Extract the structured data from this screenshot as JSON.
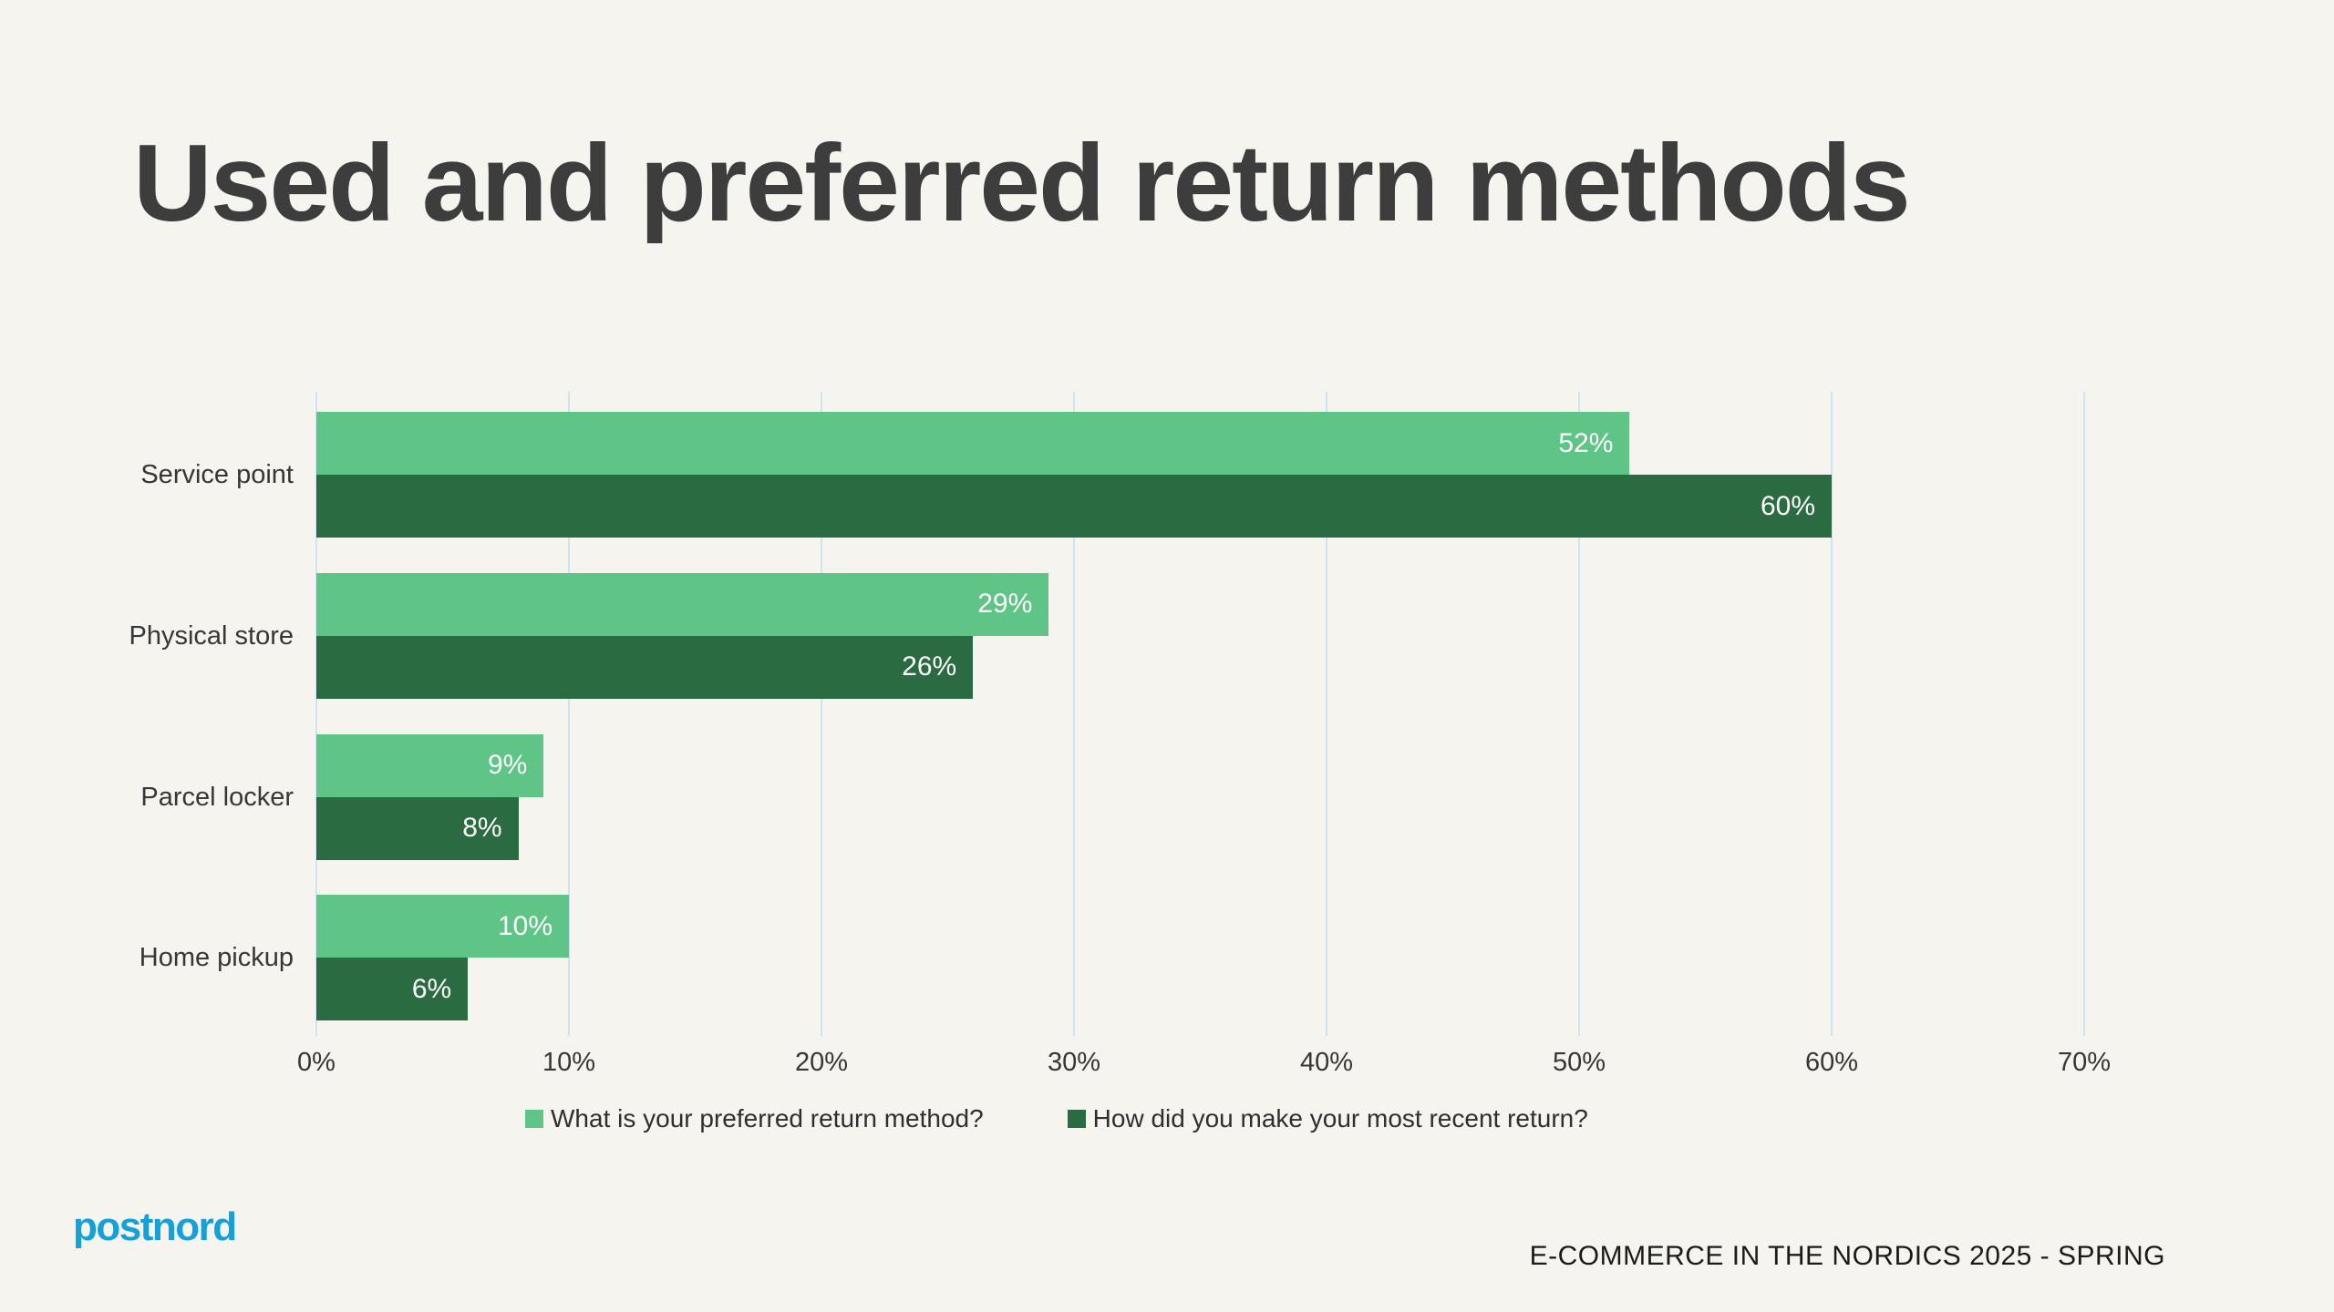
{
  "page": {
    "title": "Used and preferred return methods",
    "logo_text": "postnord",
    "source_caption": "E-COMMERCE IN THE NORDICS 2025 - SPRING"
  },
  "colors": {
    "background": "#F5F4EF",
    "title_text": "#3D3D3D",
    "gridline_blue": "#CBE5F6",
    "preferred_green": "#5EC586",
    "recent_green": "#2A6B42",
    "value_label_text": "#FFFFFF",
    "axis_text": "#373737",
    "logo_blue": "#14A0DB"
  },
  "chart_data": {
    "type": "bar",
    "orientation": "horizontal",
    "title": "Used and preferred return methods",
    "categories": [
      "Service point",
      "Physical store",
      "Parcel locker",
      "Home pickup"
    ],
    "series": [
      {
        "name": "What is your preferred return method?",
        "color": "#5EC586",
        "values": [
          52,
          29,
          9,
          10
        ]
      },
      {
        "name": "How did you make your most recent return?",
        "color": "#2A6B42",
        "values": [
          60,
          26,
          8,
          6
        ]
      }
    ],
    "value_suffix": "%",
    "xlim": [
      0,
      70
    ],
    "x_tick_step": 10,
    "x_ticks": [
      "0%",
      "10%",
      "20%",
      "30%",
      "40%",
      "50%",
      "60%",
      "70%"
    ],
    "grid": true,
    "value_labels": "inside-end",
    "legend_position": "bottom"
  }
}
